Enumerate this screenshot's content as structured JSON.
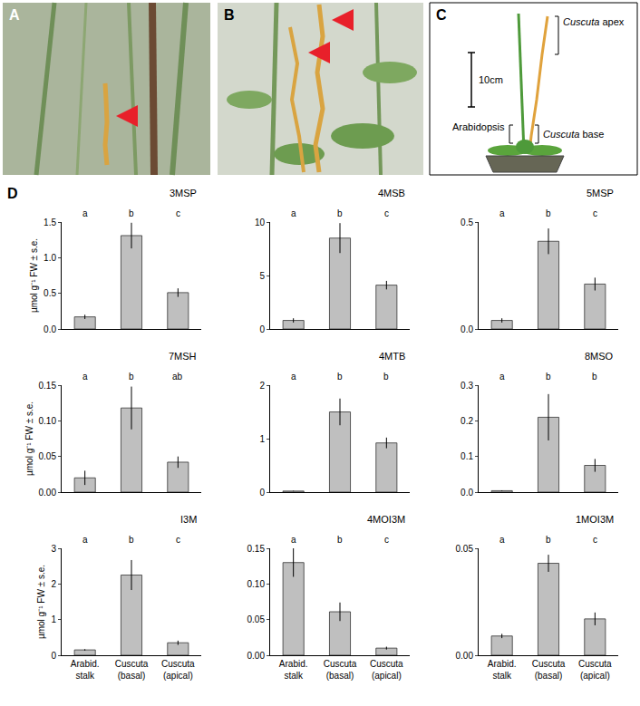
{
  "panels": {
    "labels": [
      "A",
      "B",
      "C",
      "D"
    ],
    "diagram": {
      "apex": "Cuscuta apex",
      "scale": "10cm",
      "host": "Arabidopsis",
      "base": "Cuscuta base"
    }
  },
  "chart_data": [
    {
      "type": "bar",
      "title": "3MSP",
      "ylabel": "µmol g⁻¹ FW ± s.e.",
      "categories": [
        "Arabid. stalk",
        "Cuscuta (basal)",
        "Cuscuta (apical)"
      ],
      "values": [
        0.17,
        1.31,
        0.51
      ],
      "errors": [
        0.03,
        0.18,
        0.06
      ],
      "letters": [
        "a",
        "b",
        "c"
      ],
      "color": "#bfbfbf",
      "ylim": [
        0,
        1.5
      ],
      "yticks": [
        {
          "value": 0,
          "label": "0.0"
        },
        {
          "value": 0.5,
          "label": "0.5"
        },
        {
          "value": 1,
          "label": "1.0"
        },
        {
          "value": 1.5,
          "label": "1.5"
        }
      ],
      "grid": false,
      "tick_labels": "y"
    },
    {
      "type": "bar",
      "title": "4MSB",
      "categories": [
        "Arabid. stalk",
        "Cuscuta (basal)",
        "Cuscuta (apical)"
      ],
      "values": [
        0.8,
        8.5,
        4.1
      ],
      "errors": [
        0.2,
        1.4,
        0.4
      ],
      "letters": [
        "a",
        "b",
        "c"
      ],
      "color": "#bfbfbf",
      "ylim": [
        0,
        10
      ],
      "yticks": [
        0,
        5,
        10
      ],
      "grid": false,
      "tick_labels": "y"
    },
    {
      "type": "bar",
      "title": "5MSP",
      "categories": [
        "Arabid. stalk",
        "Cuscuta (basal)",
        "Cuscuta (apical)"
      ],
      "values": [
        0.04,
        0.41,
        0.21
      ],
      "errors": [
        0.01,
        0.06,
        0.03
      ],
      "letters": [
        "a",
        "b",
        "c"
      ],
      "color": "#bfbfbf",
      "ylim": [
        0,
        0.5
      ],
      "yticks": [
        {
          "value": 0,
          "label": "0.0"
        },
        0.5
      ],
      "grid": false,
      "tick_labels": "y"
    },
    {
      "type": "bar",
      "title": "7MSH",
      "ylabel": "µmol g⁻¹ FW ± s.e.",
      "categories": [
        "Arabid. stalk",
        "Cuscuta (basal)",
        "Cuscuta (apical)"
      ],
      "values": [
        0.02,
        0.118,
        0.042
      ],
      "errors": [
        0.01,
        0.03,
        0.008
      ],
      "letters": [
        "a",
        "b",
        "ab"
      ],
      "color": "#bfbfbf",
      "ylim": [
        0,
        0.15
      ],
      "yticks": [
        {
          "value": 0,
          "label": "0.00"
        },
        0.05,
        {
          "value": 0.1,
          "label": "0.10"
        },
        0.15
      ],
      "grid": false,
      "tick_labels": "y"
    },
    {
      "type": "bar",
      "title": "4MTB",
      "categories": [
        "Arabid. stalk",
        "Cuscuta (basal)",
        "Cuscuta (apical)"
      ],
      "values": [
        0.02,
        1.5,
        0.92
      ],
      "errors": [
        0.005,
        0.25,
        0.1
      ],
      "letters": [
        "a",
        "b",
        "b"
      ],
      "color": "#bfbfbf",
      "ylim": [
        0,
        2
      ],
      "yticks": [
        0,
        1,
        2
      ],
      "grid": false,
      "tick_labels": "y"
    },
    {
      "type": "bar",
      "title": "8MSO",
      "categories": [
        "Arabid. stalk",
        "Cuscuta (basal)",
        "Cuscuta (apical)"
      ],
      "values": [
        0.004,
        0.21,
        0.075
      ],
      "errors": [
        0.001,
        0.065,
        0.018
      ],
      "letters": [
        "a",
        "b",
        "b"
      ],
      "color": "#bfbfbf",
      "ylim": [
        0,
        0.3
      ],
      "yticks": [
        {
          "value": 0,
          "label": "0.0"
        },
        0.1,
        0.2,
        0.3
      ],
      "grid": false,
      "tick_labels": "y"
    },
    {
      "type": "bar",
      "title": "I3M",
      "ylabel": "µmol g⁻¹ FW ± s.e.",
      "categories": [
        "Arabid. stalk",
        "Cuscuta (basal)",
        "Cuscuta (apical)"
      ],
      "values": [
        0.15,
        2.25,
        0.35
      ],
      "errors": [
        0.02,
        0.42,
        0.06
      ],
      "letters": [
        "a",
        "b",
        "c"
      ],
      "color": "#bfbfbf",
      "ylim": [
        0,
        3
      ],
      "yticks": [
        0,
        1,
        2,
        3
      ],
      "grid": false
    },
    {
      "type": "bar",
      "title": "4MOI3M",
      "categories": [
        "Arabid. stalk",
        "Cuscuta (basal)",
        "Cuscuta (apical)"
      ],
      "values": [
        0.13,
        0.061,
        0.01
      ],
      "errors": [
        0.02,
        0.013,
        0.002
      ],
      "letters": [
        "a",
        "b",
        "c"
      ],
      "color": "#bfbfbf",
      "ylim": [
        0,
        0.15
      ],
      "yticks": [
        {
          "value": 0,
          "label": "0.00"
        },
        0.05,
        {
          "value": 0.1,
          "label": "0.10"
        },
        0.15
      ],
      "grid": false
    },
    {
      "type": "bar",
      "title": "1MOI3M",
      "categories": [
        "Arabid. stalk",
        "Cuscuta (basal)",
        "Cuscuta (apical)"
      ],
      "values": [
        0.009,
        0.043,
        0.017
      ],
      "errors": [
        0.001,
        0.004,
        0.003
      ],
      "letters": [
        "a",
        "b",
        "c"
      ],
      "color": "#bfbfbf",
      "ylim": [
        0,
        0.05
      ],
      "yticks": [
        {
          "value": 0,
          "label": "0.00"
        },
        0.05
      ],
      "grid": false
    }
  ]
}
